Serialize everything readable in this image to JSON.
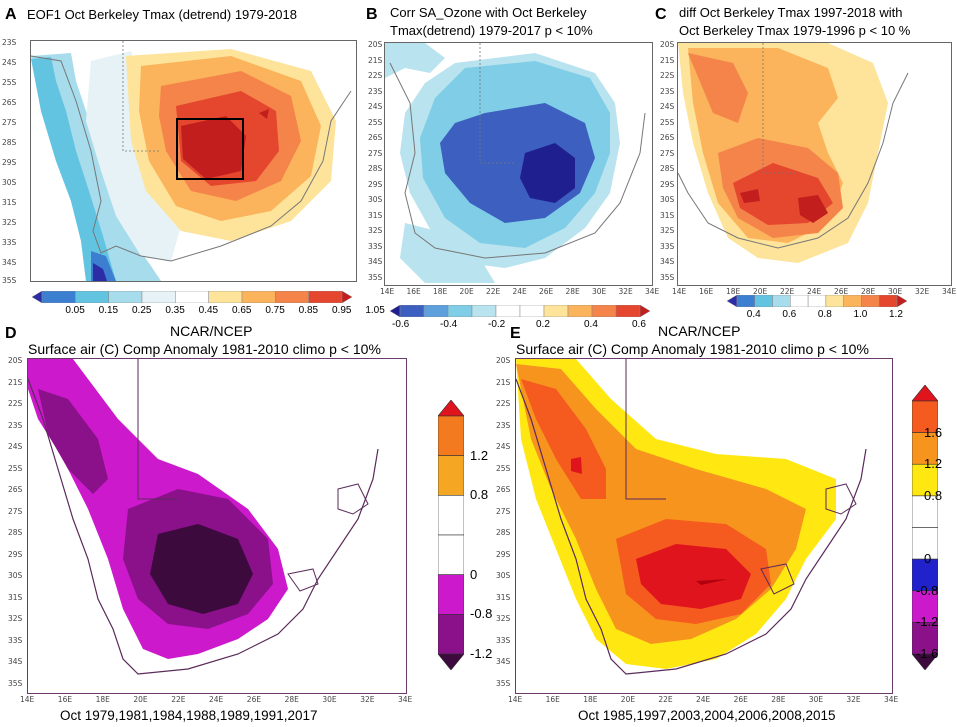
{
  "chart_data": [
    {
      "id": "A",
      "type": "heatmap",
      "title": "EOF1 Oct Berkeley Tmax (detrend) 1979-2018",
      "lat_ticks": [
        "23S",
        "24S",
        "25S",
        "26S",
        "27S",
        "28S",
        "29S",
        "30S",
        "31S",
        "32S",
        "33S",
        "34S",
        "35S"
      ],
      "lon_ticks": [],
      "colorbar": {
        "labels": [
          "0.05",
          "0.15",
          "0.25",
          "0.35",
          "0.45",
          "0.65",
          "0.75",
          "0.85",
          "0.95",
          "1.05"
        ],
        "colors": [
          "#2b2ca6",
          "#3c7fd0",
          "#62c4e0",
          "#a6dcec",
          "#e6f2f6",
          "#ffffff",
          "#fde49a",
          "#fbb35c",
          "#f4844a",
          "#e4462e",
          "#c21e1e"
        ]
      }
    },
    {
      "id": "B",
      "type": "heatmap",
      "title_line1": "Corr SA_Ozone with Oct Berkeley",
      "title_line2": "Tmax(detrend) 1979-2017 p < 10%",
      "lat_ticks": [
        "20S",
        "21S",
        "22S",
        "23S",
        "24S",
        "25S",
        "26S",
        "27S",
        "28S",
        "29S",
        "30S",
        "31S",
        "32S",
        "33S",
        "34S",
        "35S"
      ],
      "lon_ticks": [
        "14E",
        "16E",
        "18E",
        "20E",
        "22E",
        "24E",
        "26E",
        "28E",
        "30E",
        "32E",
        "34E"
      ],
      "colorbar": {
        "labels": [
          "-0.6",
          "-0.4",
          "-0.2",
          "0.2",
          "0.4",
          "0.6"
        ],
        "colors": [
          "#1f1f8f",
          "#3d5fbf",
          "#5ea0dc",
          "#7fcde6",
          "#b9e3ee",
          "#ffffff",
          "#ffffff",
          "#fde49a",
          "#fbb35c",
          "#f4844a",
          "#e4462e",
          "#c21e1e"
        ]
      }
    },
    {
      "id": "C",
      "type": "heatmap",
      "title_line1": "diff Oct Berkeley Tmax 1997-2018 with",
      "title_line2": "Oct Berkeley Tmax 1979-1996 p < 10 %",
      "lat_ticks": [
        "20S",
        "21S",
        "22S",
        "23S",
        "24S",
        "25S",
        "26S",
        "27S",
        "28S",
        "29S",
        "30S",
        "31S",
        "32S",
        "33S",
        "34S",
        "35S"
      ],
      "lon_ticks": [
        "14E",
        "16E",
        "18E",
        "20E",
        "22E",
        "24E",
        "26E",
        "28E",
        "30E",
        "32E",
        "34E"
      ],
      "colorbar": {
        "labels": [
          "0.4",
          "0.6",
          "0.8",
          "1.0",
          "1.2"
        ],
        "colors": [
          "#2b2ca6",
          "#3c7fd0",
          "#62c4e0",
          "#a6dcec",
          "#ffffff",
          "#ffffff",
          "#fde49a",
          "#fbb35c",
          "#f4844a",
          "#e4462e",
          "#c21e1e"
        ]
      }
    },
    {
      "id": "D",
      "type": "heatmap",
      "source": "NCAR/NCEP",
      "title": "Surface air (C) Comp Anomaly 1981-2010 climo p < 10%",
      "lat_ticks": [
        "20S",
        "21S",
        "22S",
        "23S",
        "24S",
        "25S",
        "26S",
        "27S",
        "28S",
        "29S",
        "30S",
        "31S",
        "32S",
        "33S",
        "34S",
        "35S"
      ],
      "lon_ticks": [
        "14E",
        "16E",
        "18E",
        "20E",
        "22E",
        "24E",
        "26E",
        "28E",
        "30E",
        "32E",
        "34E"
      ],
      "years": "Oct 1979,1981,1984,1988,1989,1991,2017",
      "colorbar": {
        "labels": [
          "1.2",
          "0.8",
          "0",
          "-0.8",
          "-1.2"
        ],
        "colors": [
          "#e0141c",
          "#f47a1f",
          "#f5a623",
          "#ffffff",
          "#ffffff",
          "#cc19cc",
          "#8a118a",
          "#3d0a3d"
        ]
      }
    },
    {
      "id": "E",
      "type": "heatmap",
      "source": "NCAR/NCEP",
      "title": "Surface air (C) Comp Anomaly 1981-2010 climo p < 10%",
      "lat_ticks": [
        "20S",
        "21S",
        "22S",
        "23S",
        "24S",
        "25S",
        "26S",
        "27S",
        "28S",
        "29S",
        "30S",
        "31S",
        "32S",
        "33S",
        "34S",
        "35S"
      ],
      "lon_ticks": [
        "14E",
        "16E",
        "18E",
        "20E",
        "22E",
        "24E",
        "26E",
        "28E",
        "30E",
        "32E",
        "34E"
      ],
      "years": "Oct 1985,1997,2003,2004,2006,2008,2015",
      "colorbar": {
        "labels": [
          "1.6",
          "1.2",
          "0.8",
          "0",
          "-0.8",
          "-1.2",
          "-1.6"
        ],
        "colors": [
          "#e0141c",
          "#f55a1f",
          "#f7941d",
          "#ffe812",
          "#ffffff",
          "#ffffff",
          "#2222cc",
          "#cc19cc",
          "#8a118a",
          "#3d0a3d"
        ]
      }
    }
  ],
  "panel_letters": [
    "A",
    "B",
    "C",
    "D",
    "E"
  ]
}
